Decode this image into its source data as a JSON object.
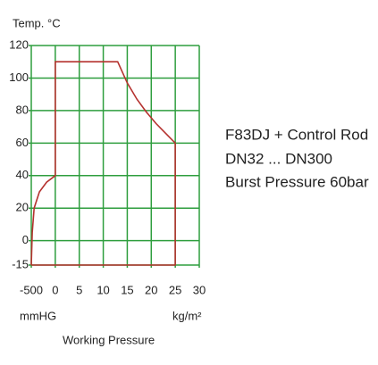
{
  "chart_data": {
    "type": "line",
    "y_label": "Temp. °C",
    "x_label_left": "mmHG",
    "x_label_right": "kg/m²",
    "x_title": "Working Pressure",
    "annotations": [
      "F83DJ + Control Rod",
      "DN32 ... DN300",
      "Burst Pressure 60bar"
    ],
    "xlim": [
      -500,
      30
    ],
    "xticks": [
      -500,
      0,
      5,
      10,
      15,
      20,
      25,
      30
    ],
    "ylim": [
      -15,
      120
    ],
    "yticks": [
      120,
      100,
      80,
      60,
      40,
      20,
      0,
      -15
    ],
    "grid": true,
    "grid_color": "#2e9e3e",
    "series": [
      {
        "color": "#b5322f",
        "x": [
          -500,
          -480,
          -440,
          -330,
          -180,
          0,
          0,
          13,
          15,
          17,
          19,
          21,
          23,
          25,
          25,
          -500
        ],
        "values": [
          -15,
          5,
          20,
          30,
          36,
          40,
          110,
          110,
          97,
          87,
          79,
          72,
          66,
          60,
          -15,
          -15
        ]
      }
    ]
  }
}
